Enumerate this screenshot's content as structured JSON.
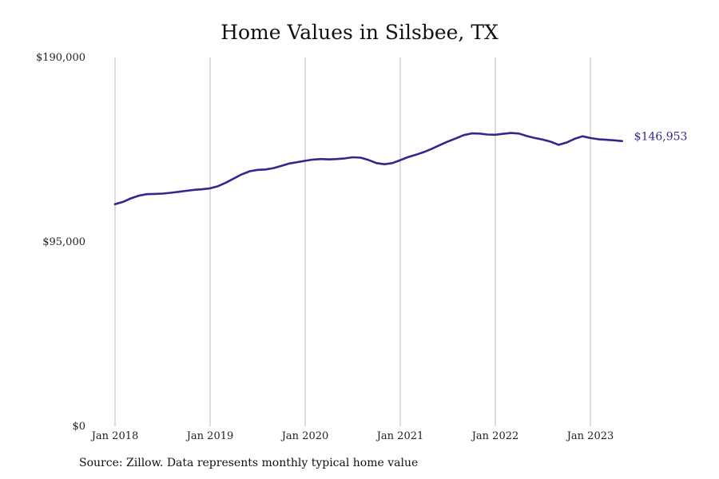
{
  "chart_data": {
    "type": "line",
    "title": "Home Values in Silsbee, TX",
    "source": "Source: Zillow. Data represents monthly typical home value",
    "xlabel": "",
    "ylabel": "",
    "ylim": [
      0,
      190000
    ],
    "y_ticks": [
      {
        "value": 0,
        "label": "$0"
      },
      {
        "value": 95000,
        "label": "$95,000"
      },
      {
        "value": 190000,
        "label": "$190,000"
      }
    ],
    "x_ticks": [
      "Jan 2018",
      "Jan 2019",
      "Jan 2020",
      "Jan 2021",
      "Jan 2022",
      "Jan 2023"
    ],
    "vertical_grid": true,
    "line_color": "#2e2a8c",
    "end_label": "$146,953",
    "series": [
      {
        "x": [
          "2018-01",
          "2018-02",
          "2018-03",
          "2018-04",
          "2018-05",
          "2018-06",
          "2018-07",
          "2018-08",
          "2018-09",
          "2018-10",
          "2018-11",
          "2018-12",
          "2019-01",
          "2019-02",
          "2019-03",
          "2019-04",
          "2019-05",
          "2019-06",
          "2019-07",
          "2019-08",
          "2019-09",
          "2019-10",
          "2019-11",
          "2019-12",
          "2020-01",
          "2020-02",
          "2020-03",
          "2020-04",
          "2020-05",
          "2020-06",
          "2020-07",
          "2020-08",
          "2020-09",
          "2020-10",
          "2020-11",
          "2020-12",
          "2021-01",
          "2021-02",
          "2021-03",
          "2021-04",
          "2021-05",
          "2021-06",
          "2021-07",
          "2021-08",
          "2021-09",
          "2021-10",
          "2021-11",
          "2021-12",
          "2022-01",
          "2022-02",
          "2022-03",
          "2022-04",
          "2022-05",
          "2022-06",
          "2022-07",
          "2022-08",
          "2022-09",
          "2022-10",
          "2022-11",
          "2022-12",
          "2023-01",
          "2023-02",
          "2023-03",
          "2023-04",
          "2023-05"
        ],
        "values": [
          114400,
          115600,
          117400,
          118800,
          119600,
          119700,
          119900,
          120300,
          120800,
          121300,
          121800,
          122100,
          122600,
          123700,
          125500,
          127700,
          129800,
          131400,
          132100,
          132300,
          133000,
          134200,
          135400,
          136100,
          136800,
          137400,
          137700,
          137500,
          137700,
          138000,
          138600,
          138400,
          137200,
          135600,
          135000,
          135600,
          137100,
          138700,
          139900,
          141300,
          143000,
          144900,
          146700,
          148300,
          150000,
          150900,
          150800,
          150300,
          150200,
          150700,
          151100,
          150800,
          149500,
          148500,
          147700,
          146600,
          145000,
          146200,
          148100,
          149400,
          148500,
          147900,
          147600,
          147300,
          146953
        ]
      }
    ]
  }
}
